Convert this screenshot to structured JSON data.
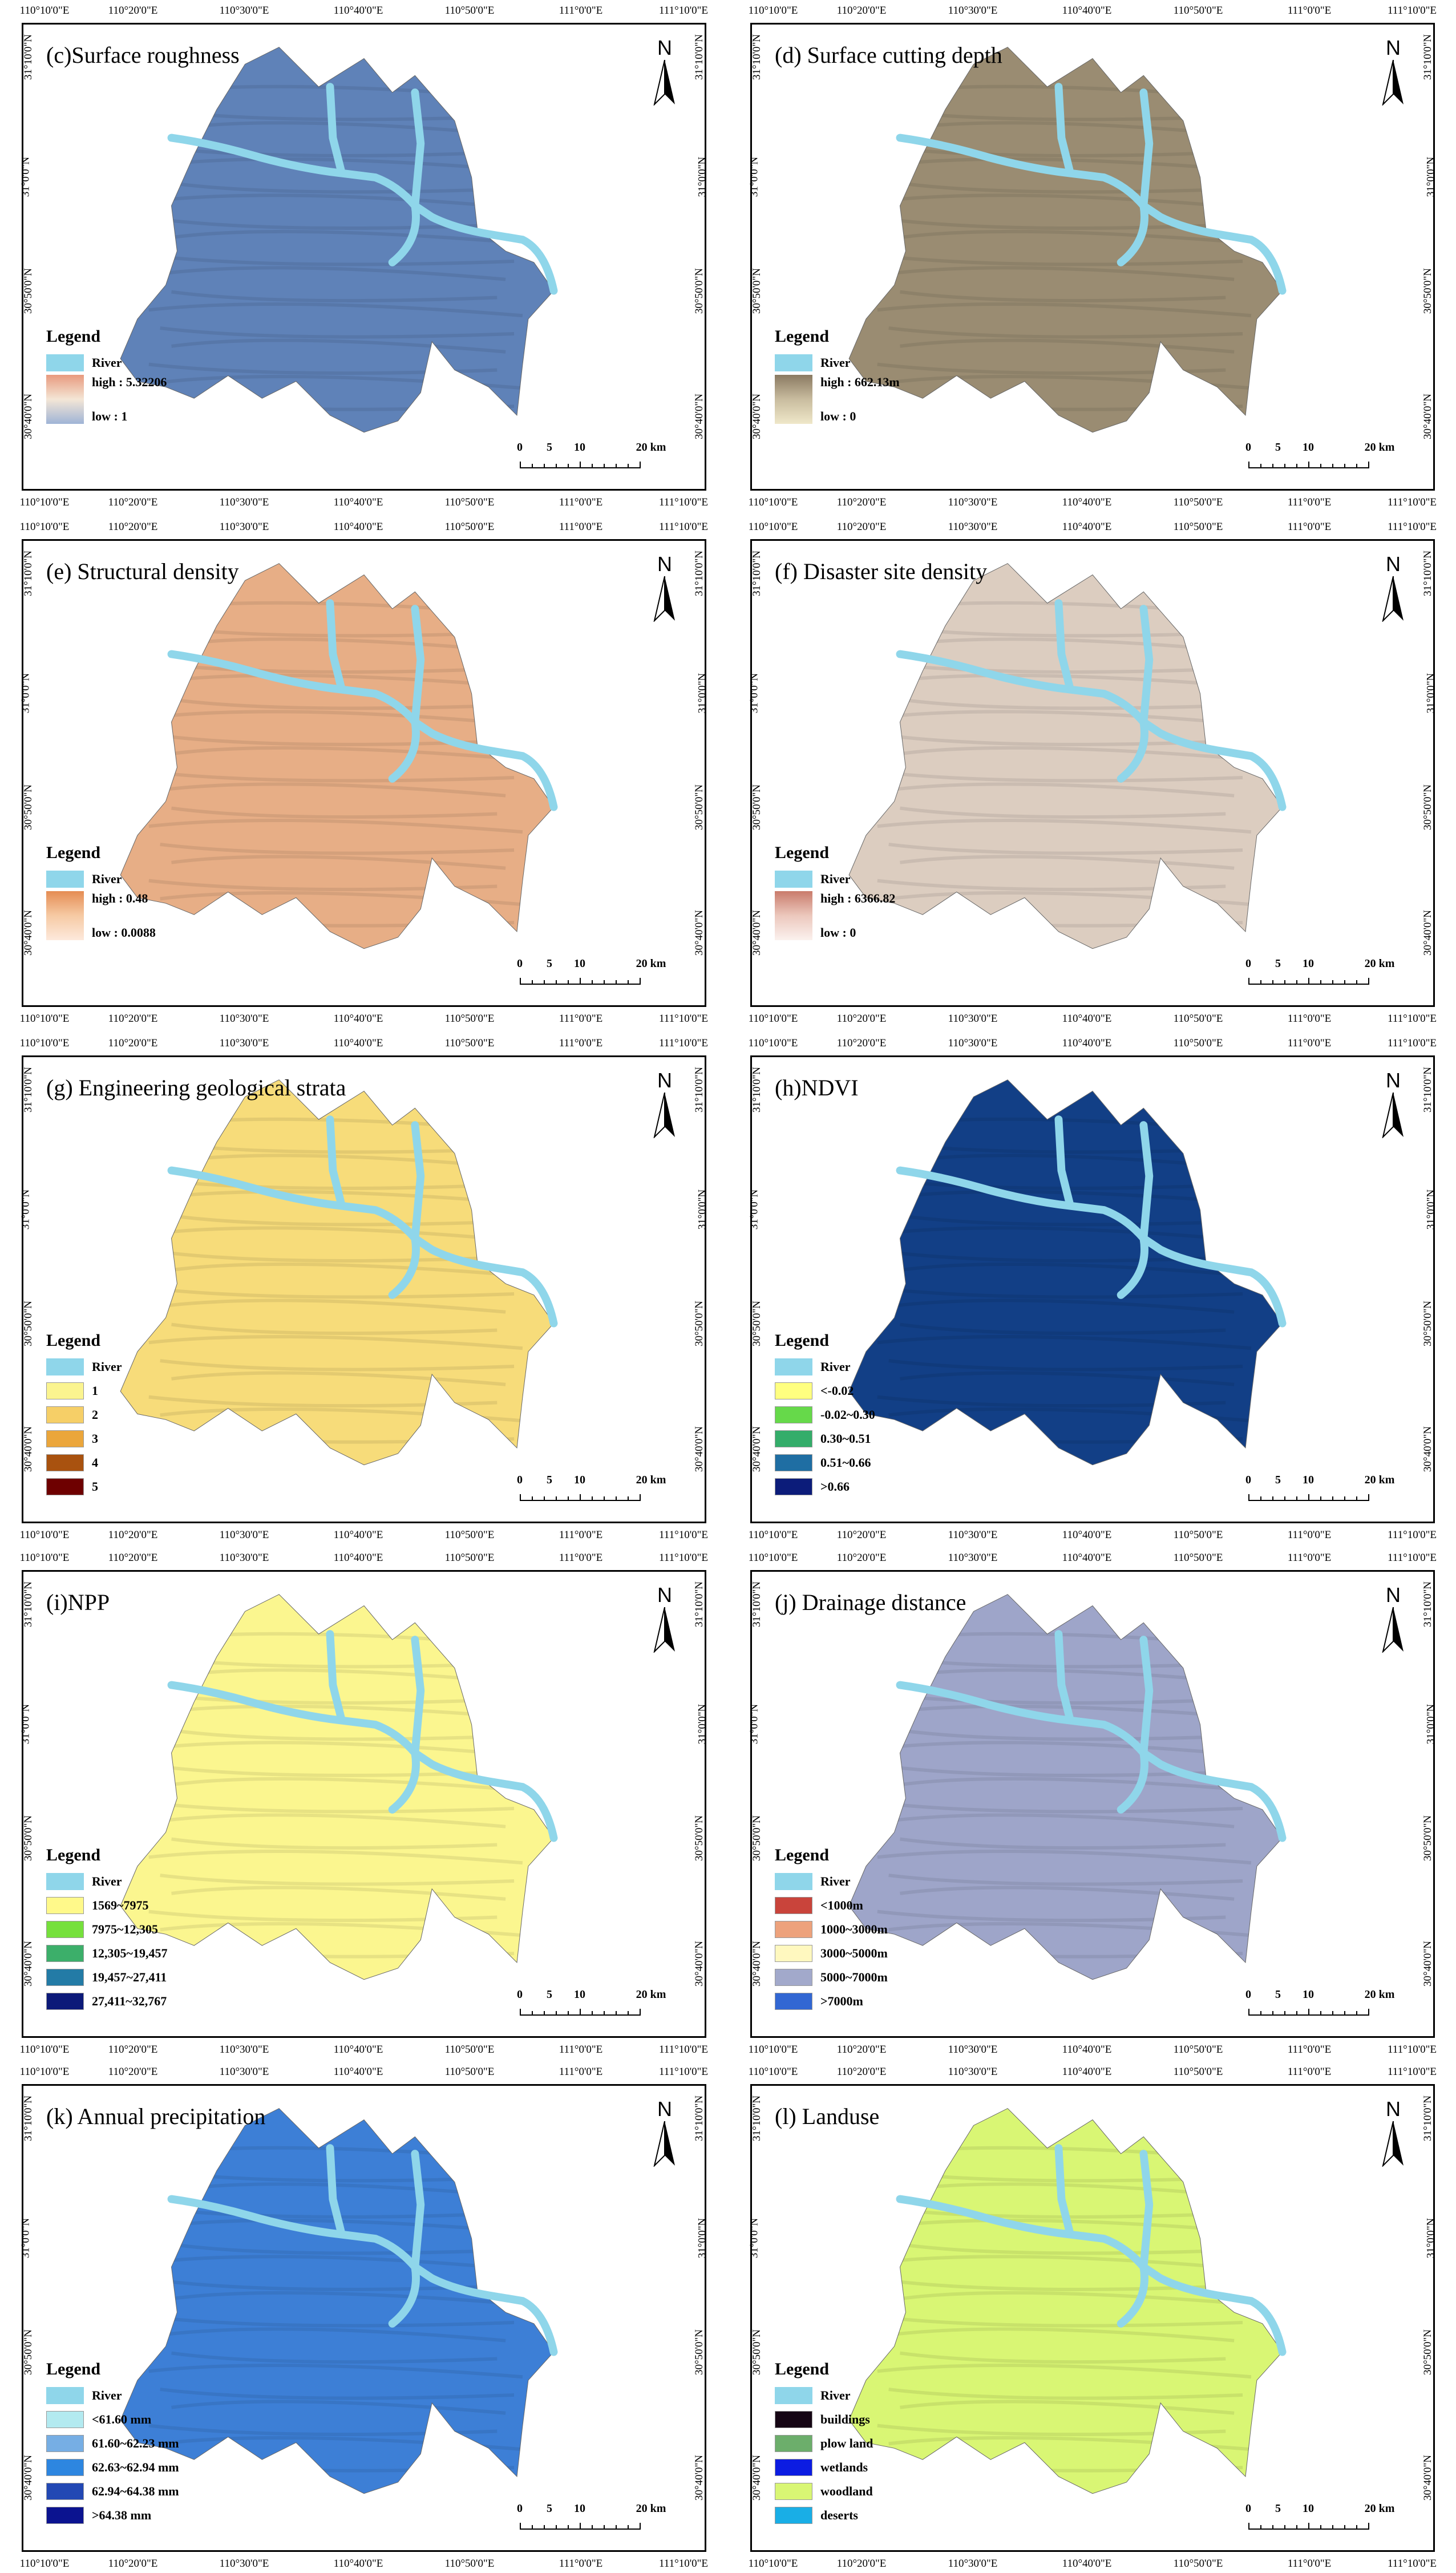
{
  "lon_ticks": [
    "110°10'0\"E",
    "110°20'0\"E",
    "110°30'0\"E",
    "110°40'0\"E",
    "110°50'0\"E",
    "111°0'0\"E",
    "111°10'0\"E"
  ],
  "lat_ticks": [
    "31°10'0\"N",
    "31°0'0\"N",
    "30°50'0\"N",
    "30°40'0\"N"
  ],
  "north_label": "N",
  "legend_title": "Legend",
  "river_label": "River",
  "scale_labels": [
    "0",
    "5",
    "10",
    "20 km"
  ],
  "colors": {
    "river": "#8fd6ea",
    "frame": "#000000"
  },
  "panels": [
    {
      "id": "c",
      "title": "(c)Surface roughness",
      "fill": "#5f82b8",
      "legend_type": "gradient",
      "gradient": [
        "#e89a7e",
        "#f4e6d6",
        "#9fb4d6"
      ],
      "high": "high : 5.32206",
      "low": "low : 1"
    },
    {
      "id": "d",
      "title": "(d) Surface cutting depth",
      "fill": "#9a8c72",
      "legend_type": "gradient",
      "gradient": [
        "#8a7a62",
        "#c9bc9f",
        "#efe7c9"
      ],
      "high": "high : 662.13m",
      "low": "low : 0"
    },
    {
      "id": "e",
      "title": "(e) Structural density",
      "fill": "#e7ae86",
      "legend_type": "gradient",
      "gradient": [
        "#e58c53",
        "#f6caa4",
        "#fde9dc"
      ],
      "high": "high : 0.48",
      "low": "low : 0.0088"
    },
    {
      "id": "f",
      "title": "(f) Disaster site density",
      "fill": "#dccdc0",
      "legend_type": "gradient",
      "gradient": [
        "#c97b6b",
        "#ecc8bd",
        "#fbf1ee"
      ],
      "high": "high : 6366.82",
      "low": "low : 0"
    },
    {
      "id": "g",
      "title": "(g) Engineering geological strata",
      "fill": "#f7dc7a",
      "legend_type": "classes",
      "classes": [
        {
          "label": "1",
          "color": "#fbf48f"
        },
        {
          "label": "2",
          "color": "#f6cf67"
        },
        {
          "label": "3",
          "color": "#eba63b"
        },
        {
          "label": "4",
          "color": "#a9520f"
        },
        {
          "label": "5",
          "color": "#6e0000"
        }
      ]
    },
    {
      "id": "h",
      "title": "(h)NDVI",
      "fill": "#123f86",
      "legend_type": "classes",
      "classes": [
        {
          "label": "<-0.02",
          "color": "#ffff80"
        },
        {
          "label": "-0.02~0.30",
          "color": "#66d94a"
        },
        {
          "label": "0.30~0.51",
          "color": "#34ad6a"
        },
        {
          "label": "0.51~0.66",
          "color": "#1f6ea3"
        },
        {
          "label": ">0.66",
          "color": "#0c1c7a"
        }
      ]
    },
    {
      "id": "i",
      "title": "(i)NPP",
      "fill": "#fbf68f",
      "legend_type": "classes",
      "classes": [
        {
          "label": "1569~7975",
          "color": "#fff98a"
        },
        {
          "label": "7975~12,305",
          "color": "#76e03c"
        },
        {
          "label": "12,305~19,457",
          "color": "#3caf6a"
        },
        {
          "label": "19,457~27,411",
          "color": "#237ba6"
        },
        {
          "label": "27,411~32,767",
          "color": "#0c1a79"
        }
      ]
    },
    {
      "id": "j",
      "title": "(j) Drainage distance",
      "fill": "#9ea5c9",
      "legend_type": "classes",
      "classes": [
        {
          "label": "<1000m",
          "color": "#c9443b"
        },
        {
          "label": "1000~3000m",
          "color": "#eda27c"
        },
        {
          "label": "3000~5000m",
          "color": "#fff8bf"
        },
        {
          "label": "5000~7000m",
          "color": "#a2a9cb"
        },
        {
          "label": ">7000m",
          "color": "#3267d3"
        }
      ]
    },
    {
      "id": "k",
      "title": "(k) Annual precipitation",
      "fill": "#3d7fd6",
      "legend_type": "classes",
      "classes": [
        {
          "label": "<61.60 mm",
          "color": "#b3eaf0"
        },
        {
          "label": "61.60~62.23 mm",
          "color": "#76aee4"
        },
        {
          "label": "62.63~62.94 mm",
          "color": "#2d86e0"
        },
        {
          "label": "62.94~64.38 mm",
          "color": "#2248b4"
        },
        {
          "label": ">64.38 mm",
          "color": "#0b1390"
        }
      ]
    },
    {
      "id": "l",
      "title": "(l) Landuse",
      "fill": "#d9f674",
      "legend_type": "classes",
      "classes": [
        {
          "label": "buildings",
          "color": "#150514"
        },
        {
          "label": "plow land",
          "color": "#6cae6b"
        },
        {
          "label": "wetlands",
          "color": "#0c1ce2"
        },
        {
          "label": "woodland",
          "color": "#d9f674"
        },
        {
          "label": "deserts",
          "color": "#19aee6"
        }
      ]
    }
  ]
}
